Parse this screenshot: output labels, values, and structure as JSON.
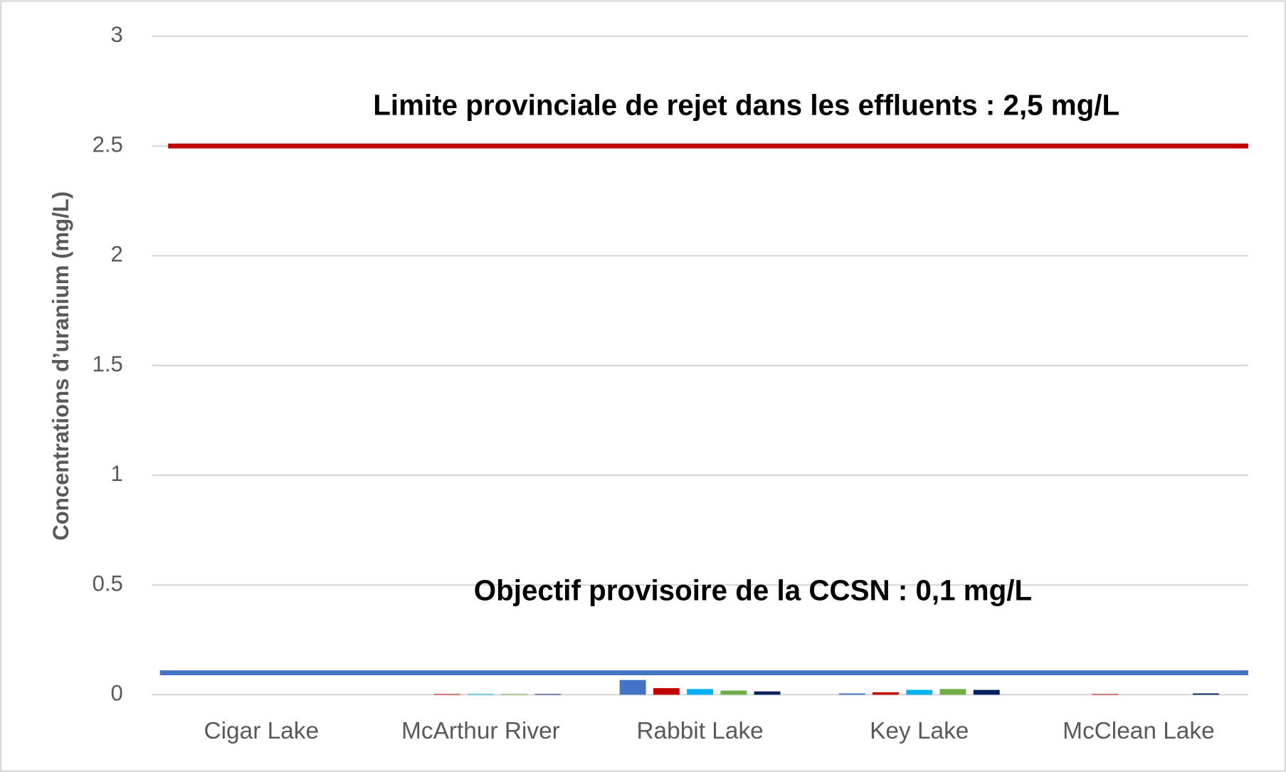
{
  "chart_data": {
    "type": "bar",
    "y_label": "Concentrations d’uranium (mg/L)",
    "categories": [
      "Cigar Lake",
      "McArthur River",
      "Rabbit Lake",
      "Key Lake",
      "McClean Lake"
    ],
    "series": [
      {
        "color": "#4472c4",
        "values": [
          0,
          0,
          0.067,
          0.006,
          0
        ]
      },
      {
        "color": "#c00000",
        "values": [
          0,
          0.003,
          0.03,
          0.011,
          0.003
        ]
      },
      {
        "color": "#00b0f0",
        "values": [
          0,
          0.003,
          0.026,
          0.022,
          0
        ]
      },
      {
        "color": "#70ad47",
        "values": [
          0,
          0.003,
          0.019,
          0.026,
          0
        ]
      },
      {
        "color": "#002060",
        "values": [
          0,
          0.003,
          0.015,
          0.022,
          0.006
        ]
      }
    ],
    "reference_lines": [
      {
        "value": 2.5,
        "color": "#c00000",
        "label": "Limite provinciale de rejet dans les effluents : 2,5 mg/L"
      },
      {
        "value": 0.1,
        "color": "#4472c4",
        "label": "Objectif provisoire de la CCSN : 0,1 mg/L"
      }
    ],
    "ylim": [
      0,
      3
    ],
    "yticks": [
      0,
      0.5,
      1,
      1.5,
      2,
      2.5,
      3
    ],
    "grid": true
  }
}
